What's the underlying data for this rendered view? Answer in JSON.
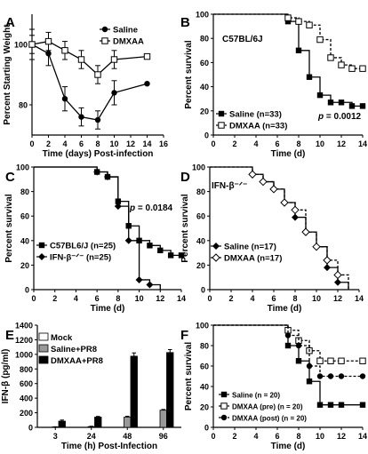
{
  "chart_data": [
    {
      "panel": "A",
      "type": "line",
      "ylabel": "Percent Starting Weight",
      "xlabel": "Time (days) Post-infection",
      "xlim": [
        0,
        16
      ],
      "ylim": [
        70,
        110
      ],
      "xticks": [
        0,
        2,
        4,
        6,
        8,
        10,
        12,
        14,
        16
      ],
      "yticks": [
        80,
        100
      ],
      "legend": "top-right",
      "series": [
        {
          "name": "Saline",
          "marker": "filled-circle",
          "dash": false,
          "x": [
            0,
            2,
            4,
            6,
            8,
            10,
            14
          ],
          "y": [
            100,
            97,
            82,
            76,
            75,
            84,
            87
          ],
          "err": [
            5,
            4,
            4,
            3,
            3,
            4,
            0
          ]
        },
        {
          "name": "DMXAA",
          "marker": "open-square",
          "dash": false,
          "x": [
            0,
            2,
            4,
            6,
            8,
            10,
            14
          ],
          "y": [
            100,
            101,
            98,
            95,
            90,
            95,
            96
          ],
          "err": [
            3,
            3,
            3,
            3,
            3,
            3,
            0
          ]
        }
      ]
    },
    {
      "panel": "B",
      "type": "step",
      "ylabel": "Percent survival",
      "xlabel": "Time (d)",
      "xlim": [
        0,
        14
      ],
      "ylim": [
        0,
        100
      ],
      "xticks": [
        0,
        2,
        4,
        6,
        8,
        10,
        12,
        14
      ],
      "yticks": [
        0,
        20,
        40,
        60,
        80,
        100
      ],
      "strain": "C57BL/6J",
      "pvalue_label": "p",
      "pvalue": "= 0.0012",
      "legend": "bottom-left",
      "series": [
        {
          "name": "Saline (n=33)",
          "marker": "filled-square",
          "dash": false,
          "x": [
            0,
            7,
            8,
            9,
            10,
            11,
            12,
            13,
            14
          ],
          "y": [
            100,
            94,
            70,
            48,
            33,
            27,
            27,
            24,
            24
          ]
        },
        {
          "name": "DMXAA (n=33)",
          "marker": "open-square",
          "dash": true,
          "x": [
            0,
            7,
            8,
            9,
            10,
            11,
            12,
            13,
            14
          ],
          "y": [
            100,
            97,
            94,
            91,
            79,
            64,
            58,
            55,
            55
          ]
        }
      ]
    },
    {
      "panel": "C",
      "type": "step",
      "ylabel": "Percent survival",
      "xlabel": "Time (d)",
      "xlim": [
        0,
        14
      ],
      "ylim": [
        0,
        100
      ],
      "xticks": [
        0,
        2,
        4,
        6,
        8,
        10,
        12,
        14
      ],
      "yticks": [
        0,
        20,
        40,
        60,
        80,
        100
      ],
      "pvalue_label": "p",
      "pvalue": "= 0.0184",
      "legend": "bottom-left",
      "series": [
        {
          "name": "C57BL6/J (n=25)",
          "marker": "filled-square",
          "dash": false,
          "x": [
            0,
            6,
            7,
            8,
            9,
            10,
            11,
            12,
            13,
            14
          ],
          "y": [
            100,
            96,
            92,
            72,
            52,
            40,
            36,
            32,
            28,
            28
          ]
        },
        {
          "name": "IFN-β⁻ᐟ⁻ (n=25)",
          "marker": "filled-diamond",
          "dash": false,
          "x": [
            0,
            6,
            7,
            8,
            9,
            10,
            11,
            12
          ],
          "y": [
            100,
            96,
            92,
            68,
            40,
            8,
            4,
            0
          ]
        }
      ]
    },
    {
      "panel": "D",
      "type": "step",
      "ylabel": "Percent survival",
      "xlabel": "Time (d)",
      "xlim": [
        0,
        14
      ],
      "ylim": [
        0,
        100
      ],
      "xticks": [
        0,
        2,
        4,
        6,
        8,
        10,
        12,
        14
      ],
      "yticks": [
        0,
        20,
        40,
        60,
        80,
        100
      ],
      "strain": "IFN-β⁻ᐟ⁻",
      "legend": "bottom-left",
      "series": [
        {
          "name": "Saline (n=17)",
          "marker": "filled-diamond",
          "dash": false,
          "x": [
            0,
            4,
            5,
            6,
            7,
            8,
            9,
            10,
            11,
            12,
            13
          ],
          "y": [
            100,
            94,
            88,
            82,
            71,
            59,
            47,
            35,
            18,
            6,
            0
          ]
        },
        {
          "name": "DMXAA (n=17)",
          "marker": "open-diamond",
          "dash": true,
          "x": [
            0,
            4,
            5,
            6,
            7,
            8,
            9,
            10,
            11,
            12,
            13
          ],
          "y": [
            100,
            94,
            88,
            82,
            71,
            65,
            47,
            35,
            24,
            12,
            0
          ]
        }
      ]
    },
    {
      "panel": "E",
      "type": "bar",
      "ylabel": "IFN-β (pg/ml)",
      "xlabel": "Time (h) Post-Infection",
      "ylim": [
        0,
        1400
      ],
      "yticks": [
        0,
        200,
        400,
        600,
        800,
        1000,
        1200,
        1400
      ],
      "categories": [
        "3",
        "24",
        "48",
        "96"
      ],
      "legend": "top-left",
      "series": [
        {
          "name": "Mock",
          "color": "#ffffff",
          "values": [
            0,
            0,
            0,
            0
          ],
          "err": [
            0,
            0,
            0,
            0
          ]
        },
        {
          "name": "Saline+PR8",
          "color": "#999999",
          "values": [
            5,
            10,
            140,
            235
          ],
          "err": [
            3,
            5,
            12,
            10
          ]
        },
        {
          "name": "DMXAA+PR8",
          "color": "#000000",
          "values": [
            85,
            140,
            975,
            1025
          ],
          "err": [
            15,
            10,
            45,
            40
          ]
        }
      ]
    },
    {
      "panel": "F",
      "type": "step",
      "ylabel": "Percent survival",
      "xlabel": "Time (d)",
      "xlim": [
        0,
        14
      ],
      "ylim": [
        0,
        100
      ],
      "xticks": [
        0,
        2,
        4,
        6,
        8,
        10,
        12,
        14
      ],
      "yticks": [
        0,
        20,
        40,
        60,
        80,
        100
      ],
      "legend": "bottom-left",
      "series": [
        {
          "name": "Saline (n = 20)",
          "marker": "filled-square",
          "dash": false,
          "x": [
            0,
            7,
            8,
            9,
            10,
            11,
            12,
            14
          ],
          "y": [
            100,
            80,
            65,
            45,
            22,
            22,
            22,
            22
          ]
        },
        {
          "name": "DMXAA (pre) (n = 20)",
          "marker": "open-square",
          "dash": true,
          "x": [
            0,
            7,
            8,
            9,
            10,
            11,
            12,
            14
          ],
          "y": [
            100,
            95,
            85,
            75,
            65,
            65,
            65,
            65
          ]
        },
        {
          "name": "DMXAA (post) (n = 20)",
          "marker": "filled-circle",
          "dash": true,
          "x": [
            0,
            7,
            8,
            9,
            10,
            11,
            12,
            14
          ],
          "y": [
            100,
            90,
            80,
            60,
            50,
            50,
            50,
            50
          ]
        }
      ]
    }
  ]
}
